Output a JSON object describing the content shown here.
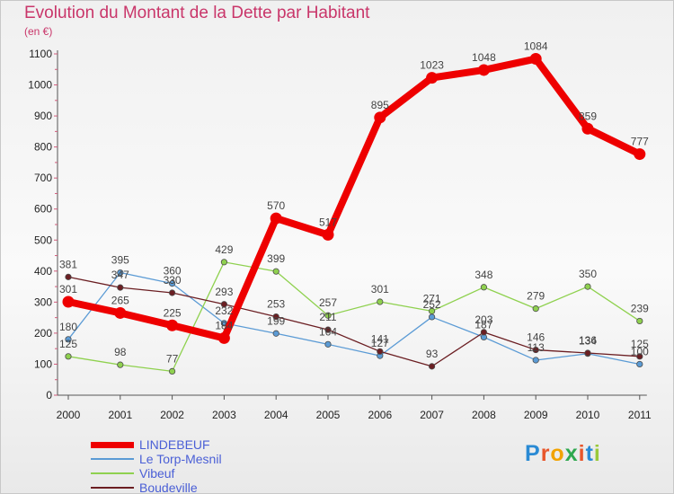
{
  "title": "Evolution du Montant de la Dette par Habitant",
  "unit_label": "(en €)",
  "logo": {
    "text": "Proxiti",
    "letter_colors": [
      "#2a8ad4",
      "#e8552a",
      "#f2a300",
      "#2fa84f",
      "#e8552a",
      "#2a8ad4",
      "#9ac93b"
    ]
  },
  "chart_data": {
    "type": "line",
    "title": "Evolution du Montant de la Dette par Habitant",
    "ylabel": "(en €)",
    "xlabel": "",
    "x": [
      "2000",
      "2001",
      "2002",
      "2003",
      "2004",
      "2005",
      "2006",
      "2007",
      "2008",
      "2009",
      "2010",
      "2011"
    ],
    "ylim": [
      0,
      1100
    ],
    "yticks": [
      0,
      100,
      200,
      300,
      400,
      500,
      600,
      700,
      800,
      900,
      1000,
      1100
    ],
    "grid": false,
    "legend_position": "bottom-left",
    "series": [
      {
        "name": "LINDEBEUF",
        "color": "#ee0000",
        "values": [
          301,
          265,
          225,
          184,
          570,
          517,
          895,
          1023,
          1048,
          1084,
          859,
          777
        ],
        "labels": [
          "301",
          "265",
          "225",
          "184",
          "570",
          "517",
          "895",
          "1023",
          "1048",
          "1084",
          "859",
          "777"
        ]
      },
      {
        "name": "Le Torp-Mesnil",
        "color": "#5b9bd5",
        "values": [
          180,
          395,
          360,
          232,
          199,
          164,
          127,
          252,
          187,
          113,
          134,
          100
        ],
        "labels": [
          "180",
          "395",
          "360",
          "232",
          "199",
          "164",
          "127",
          "252",
          "187",
          "113",
          "134",
          "100"
        ]
      },
      {
        "name": "Vibeuf",
        "color": "#8fd14f",
        "values": [
          125,
          98,
          77,
          429,
          399,
          257,
          301,
          271,
          348,
          279,
          350,
          239
        ],
        "labels": [
          "125",
          "98",
          "77",
          "429",
          "399",
          "257",
          "301",
          "271",
          "348",
          "279",
          "350",
          "239"
        ]
      },
      {
        "name": "Boudeville",
        "color": "#6b1e22",
        "values": [
          381,
          347,
          330,
          293,
          253,
          211,
          141,
          93,
          203,
          146,
          136,
          125
        ],
        "labels": [
          "381",
          "347",
          "330",
          "293",
          "253",
          "211",
          "141",
          "93",
          "203",
          "146",
          "136",
          "125"
        ]
      }
    ]
  }
}
